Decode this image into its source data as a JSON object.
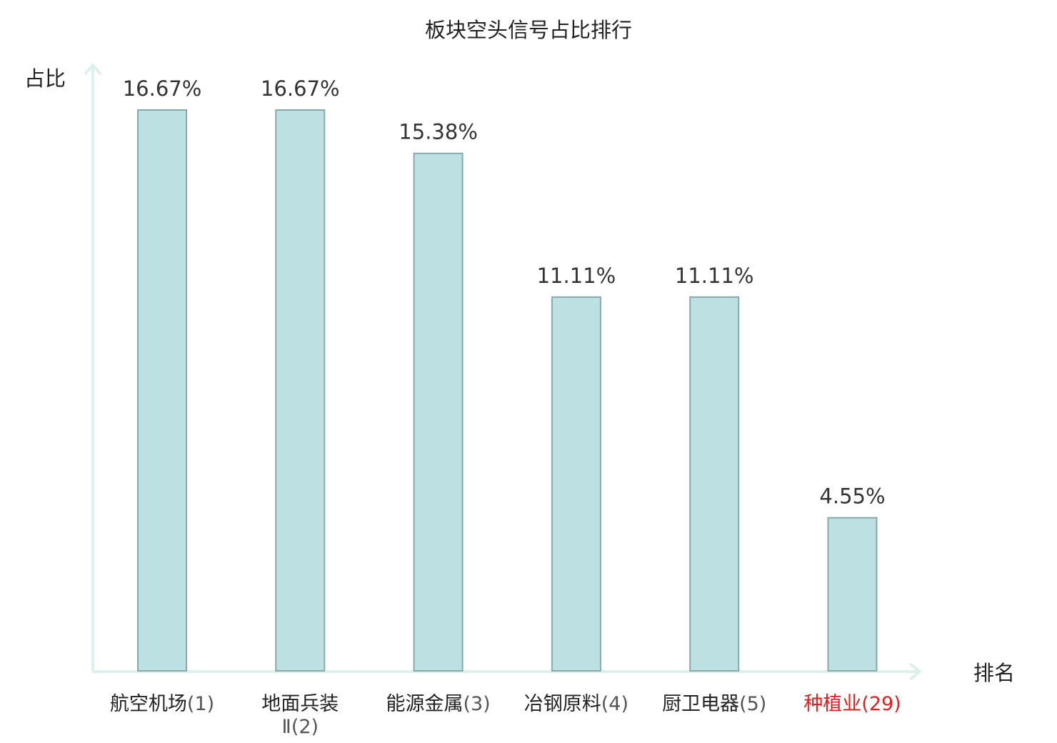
{
  "chart_data": {
    "type": "bar",
    "title": "板块空头信号占比排行",
    "ylabel": "占比",
    "xlabel": "排名",
    "ylim": [
      0,
      20
    ],
    "grid": false,
    "categories": [
      {
        "name": "航空机场",
        "code": "(1)",
        "highlight": false
      },
      {
        "name": "地面兵装",
        "name_line2": "Ⅱ",
        "code": "(2)",
        "highlight": false
      },
      {
        "name": "能源金属",
        "code": "(3)",
        "highlight": false
      },
      {
        "name": "冶钢原料",
        "code": "(4)",
        "highlight": false
      },
      {
        "name": "厨卫电器",
        "code": "(5)",
        "highlight": false
      },
      {
        "name": "种植业",
        "code": "(29)",
        "highlight": true
      }
    ],
    "values": [
      16.67,
      16.67,
      15.38,
      11.11,
      11.11,
      4.55
    ],
    "value_labels": [
      "16.67%",
      "16.67%",
      "15.38%",
      "11.11%",
      "11.11%",
      "4.55%"
    ],
    "colors": {
      "bar_fill": "#bde1e3",
      "bar_stroke": "#86a9aa",
      "axis": "#dcf0ee",
      "highlight": "#e02020"
    }
  }
}
